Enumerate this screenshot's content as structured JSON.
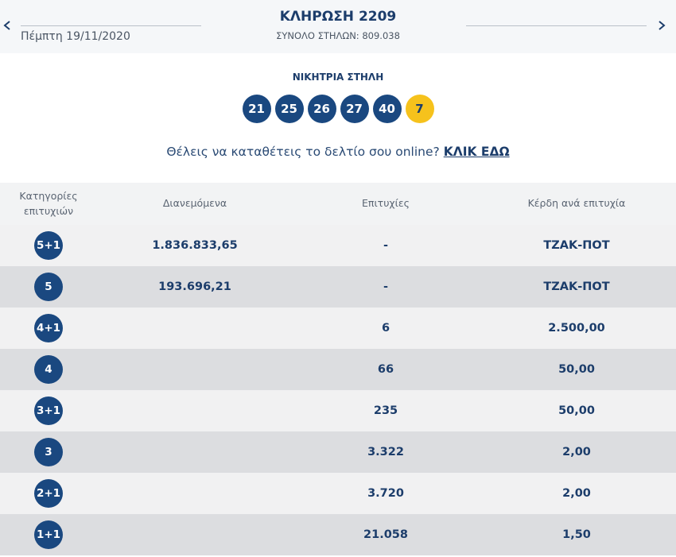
{
  "header": {
    "title": "ΚΛΗΡΩΣΗ 2209",
    "subtitle": "ΣΥΝΟΛΟ ΣΤΗΛΩΝ: 809.038",
    "date": "Πέμπτη 19/11/2020"
  },
  "winning": {
    "label": "ΝΙΚΗΤΡΙΑ ΣΤΗΛΗ",
    "numbers": [
      "21",
      "25",
      "26",
      "27",
      "40"
    ],
    "joker": "7"
  },
  "prompt": {
    "text": "Θέλεις να καταθέτεις το δελτίο σου online?",
    "link": "ΚΛΙΚ ΕΔΩ"
  },
  "table": {
    "columns": [
      "Κατηγορίες επιτυχιών",
      "Διανεμόμενα",
      "Επιτυχίες",
      "Κέρδη ανά επιτυχία"
    ],
    "rows": [
      [
        "5+1",
        "1.836.833,65",
        "-",
        "ΤΖΑΚ-ΠΟΤ"
      ],
      [
        "5",
        "193.696,21",
        "-",
        "ΤΖΑΚ-ΠΟΤ"
      ],
      [
        "4+1",
        "",
        "6",
        "2.500,00"
      ],
      [
        "4",
        "",
        "66",
        "50,00"
      ],
      [
        "3+1",
        "",
        "235",
        "50,00"
      ],
      [
        "3",
        "",
        "3.322",
        "2,00"
      ],
      [
        "2+1",
        "",
        "3.720",
        "2,00"
      ],
      [
        "1+1",
        "",
        "21.058",
        "1,50"
      ]
    ]
  }
}
